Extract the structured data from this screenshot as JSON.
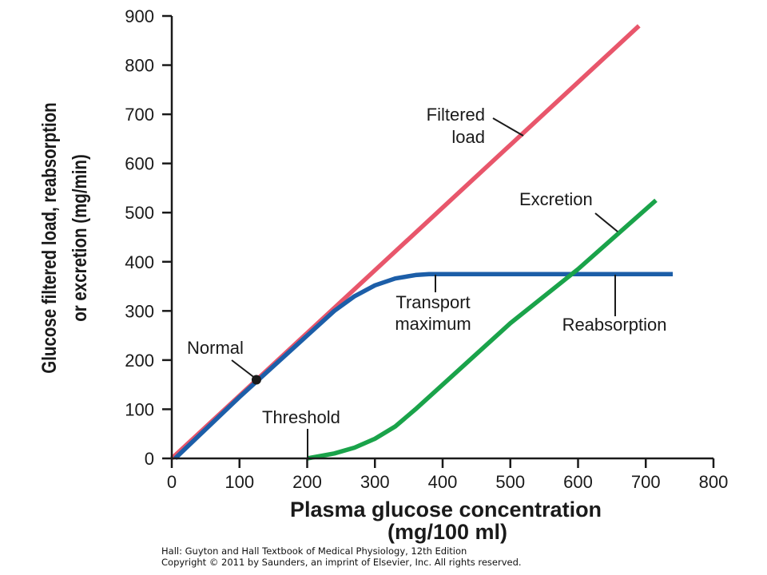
{
  "chart_data": {
    "type": "line",
    "xlabel": "Plasma glucose concentration",
    "xunit": "(mg/100 ml)",
    "ylabel_line1": "Glucose filtered load, reabsorption",
    "ylabel_line2": "or excretion (mg/min)",
    "xlim": [
      0,
      800
    ],
    "ylim": [
      0,
      900
    ],
    "xticks": [
      0,
      100,
      200,
      300,
      400,
      500,
      600,
      700,
      800
    ],
    "yticks": [
      0,
      100,
      200,
      300,
      400,
      500,
      600,
      700,
      800,
      900
    ],
    "grid": false,
    "series": [
      {
        "name": "Filtered load",
        "color": "#e8566b",
        "x": [
          0,
          690
        ],
        "y": [
          0,
          880
        ]
      },
      {
        "name": "Reabsorption",
        "color": "#1c5ea8",
        "x": [
          5,
          100,
          200,
          240,
          270,
          300,
          330,
          360,
          380,
          400,
          500,
          600,
          740
        ],
        "y": [
          0,
          125,
          250,
          300,
          330,
          352,
          366,
          373,
          375,
          375,
          375,
          375,
          375
        ]
      },
      {
        "name": "Excretion",
        "color": "#1aa34a",
        "x": [
          200,
          240,
          270,
          300,
          330,
          360,
          400,
          500,
          600,
          715
        ],
        "y": [
          0,
          10,
          22,
          40,
          65,
          100,
          150,
          275,
          385,
          525
        ]
      }
    ],
    "annotations": [
      {
        "lines": [
          "Filtered",
          "load"
        ],
        "target": "Filtered load"
      },
      {
        "lines": [
          "Excretion"
        ],
        "target": "Excretion"
      },
      {
        "lines": [
          "Transport",
          "maximum"
        ],
        "target": "Reabsorption"
      },
      {
        "lines": [
          "Reabsorption"
        ],
        "target": "Reabsorption"
      },
      {
        "lines": [
          "Normal"
        ],
        "point": [
          125,
          160
        ]
      },
      {
        "lines": [
          "Threshold"
        ],
        "point": [
          200,
          0
        ]
      }
    ]
  },
  "credit": {
    "line1": "Hall: Guyton and Hall Textbook of Medical Physiology, 12th Edition",
    "line2": "Copyright © 2011 by Saunders, an imprint of Elsevier, Inc. All rights reserved."
  }
}
